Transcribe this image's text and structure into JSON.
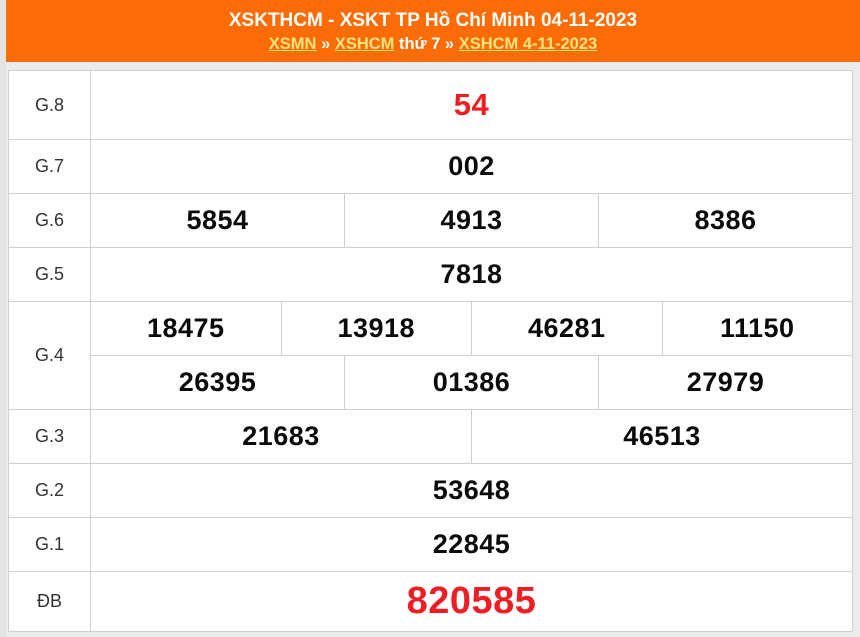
{
  "header": {
    "title": "XSKTHCM - XSKT TP Hồ Chí Minh 04-11-2023",
    "breadcrumb": {
      "link_region": "XSMN",
      "separator1": "»",
      "link_province": "XSHCM",
      "weekday_text": "thứ 7",
      "separator2": "»",
      "link_date": "XSHCM 4-11-2023"
    }
  },
  "colors": {
    "header_background": "#fb6c06",
    "link_yellow": "#ffe47e",
    "highlight_red": "#ee1f24"
  },
  "results": {
    "rows": [
      {
        "label": "G.8",
        "emphasis": "lg",
        "red": true,
        "lines": [
          [
            "54"
          ]
        ]
      },
      {
        "label": "G.7",
        "lines": [
          [
            "002"
          ]
        ]
      },
      {
        "label": "G.6",
        "lines": [
          [
            "5854",
            "4913",
            "8386"
          ]
        ]
      },
      {
        "label": "G.5",
        "lines": [
          [
            "7818"
          ]
        ]
      },
      {
        "label": "G.4",
        "lines": [
          [
            "18475",
            "13918",
            "46281",
            "11150"
          ],
          [
            "26395",
            "01386",
            "27979"
          ]
        ]
      },
      {
        "label": "G.3",
        "lines": [
          [
            "21683",
            "46513"
          ]
        ]
      },
      {
        "label": "G.2",
        "lines": [
          [
            "53648"
          ]
        ]
      },
      {
        "label": "G.1",
        "lines": [
          [
            "22845"
          ]
        ]
      },
      {
        "label": "ĐB",
        "emphasis": "xl",
        "red": true,
        "lines": [
          [
            "820585"
          ]
        ]
      }
    ]
  }
}
